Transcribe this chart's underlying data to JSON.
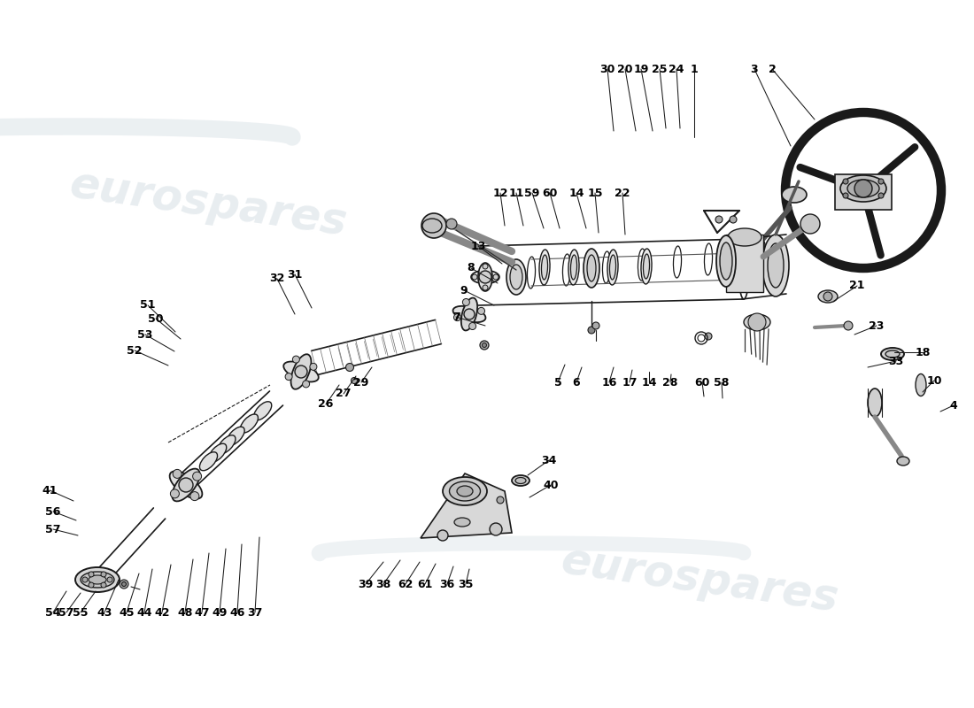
{
  "bg_color": "#ffffff",
  "line_color": "#1a1a1a",
  "text_color": "#000000",
  "wm_color": "#c8d4dc",
  "wm_alpha": 0.45,
  "wm_text": "eurospares",
  "wm_fontsize": 38,
  "fs": 9,
  "fig_w": 11.0,
  "fig_h": 8.0,
  "dpi": 100,
  "labels_top": [
    [
      686,
      78,
      693,
      148,
      "30"
    ],
    [
      706,
      78,
      718,
      148,
      "20"
    ],
    [
      724,
      78,
      737,
      148,
      "19"
    ],
    [
      745,
      78,
      752,
      145,
      "25"
    ],
    [
      764,
      78,
      768,
      145,
      "24"
    ],
    [
      784,
      78,
      784,
      155,
      "1"
    ],
    [
      852,
      78,
      893,
      165,
      "3"
    ],
    [
      872,
      78,
      920,
      135,
      "2"
    ]
  ],
  "labels_mid_top": [
    [
      565,
      218,
      570,
      255,
      "12"
    ],
    [
      583,
      218,
      591,
      255,
      "11"
    ],
    [
      601,
      218,
      614,
      258,
      "59"
    ],
    [
      621,
      218,
      632,
      258,
      "60"
    ],
    [
      651,
      218,
      662,
      258,
      "14"
    ],
    [
      672,
      218,
      676,
      263,
      "15"
    ],
    [
      703,
      218,
      706,
      265,
      "22"
    ]
  ],
  "labels_left_col": [
    [
      540,
      278,
      567,
      298,
      "13"
    ],
    [
      532,
      303,
      562,
      320,
      "8"
    ],
    [
      524,
      328,
      558,
      345,
      "9"
    ],
    [
      515,
      358,
      548,
      368,
      "7"
    ]
  ],
  "labels_right": [
    [
      968,
      323,
      942,
      340,
      "21"
    ],
    [
      990,
      368,
      965,
      378,
      "23"
    ],
    [
      1012,
      408,
      980,
      415,
      "33"
    ],
    [
      1042,
      398,
      1010,
      398,
      "18"
    ],
    [
      1055,
      430,
      1042,
      443,
      "10"
    ],
    [
      1077,
      458,
      1062,
      465,
      "4"
    ]
  ],
  "labels_mid_bot": [
    [
      630,
      432,
      638,
      412,
      "5"
    ],
    [
      651,
      432,
      657,
      415,
      "6"
    ],
    [
      688,
      432,
      693,
      415,
      "16"
    ],
    [
      711,
      432,
      714,
      418,
      "17"
    ],
    [
      733,
      432,
      733,
      420,
      "14"
    ],
    [
      757,
      432,
      758,
      423,
      "28"
    ],
    [
      793,
      432,
      795,
      448,
      "60"
    ],
    [
      815,
      432,
      816,
      450,
      "58"
    ]
  ],
  "labels_upper_left": [
    [
      167,
      345,
      198,
      375,
      "51"
    ],
    [
      176,
      360,
      204,
      383,
      "50"
    ],
    [
      164,
      378,
      197,
      397,
      "53"
    ],
    [
      152,
      396,
      190,
      413,
      "52"
    ],
    [
      313,
      315,
      333,
      355,
      "32"
    ],
    [
      333,
      310,
      352,
      348,
      "31"
    ]
  ],
  "labels_shaft": [
    [
      408,
      432,
      420,
      415,
      "29"
    ],
    [
      388,
      445,
      402,
      425,
      "27"
    ],
    [
      368,
      457,
      383,
      435,
      "26"
    ]
  ],
  "labels_bottom_row": [
    [
      60,
      692,
      75,
      668,
      "54"
    ],
    [
      75,
      692,
      91,
      670,
      "57"
    ],
    [
      91,
      692,
      108,
      668,
      "55"
    ],
    [
      118,
      692,
      134,
      655,
      "43"
    ],
    [
      143,
      692,
      157,
      648,
      "45"
    ],
    [
      163,
      692,
      172,
      643,
      "44"
    ],
    [
      183,
      692,
      193,
      638,
      "42"
    ],
    [
      209,
      692,
      218,
      632,
      "48"
    ],
    [
      228,
      692,
      236,
      625,
      "47"
    ],
    [
      248,
      692,
      255,
      620,
      "49"
    ],
    [
      268,
      692,
      273,
      615,
      "46"
    ],
    [
      288,
      692,
      293,
      607,
      "37"
    ],
    [
      413,
      660,
      433,
      635,
      "39"
    ],
    [
      433,
      660,
      452,
      633,
      "38"
    ],
    [
      458,
      660,
      474,
      635,
      "62"
    ],
    [
      480,
      660,
      492,
      637,
      "61"
    ],
    [
      505,
      660,
      512,
      640,
      "36"
    ],
    [
      526,
      660,
      530,
      643,
      "35"
    ]
  ],
  "labels_lower_left": [
    [
      56,
      554,
      83,
      566,
      "41"
    ],
    [
      60,
      578,
      86,
      588,
      "56"
    ],
    [
      60,
      598,
      88,
      605,
      "57"
    ]
  ],
  "labels_bracket": [
    [
      620,
      520,
      596,
      537,
      "34"
    ],
    [
      622,
      548,
      598,
      562,
      "40"
    ]
  ]
}
